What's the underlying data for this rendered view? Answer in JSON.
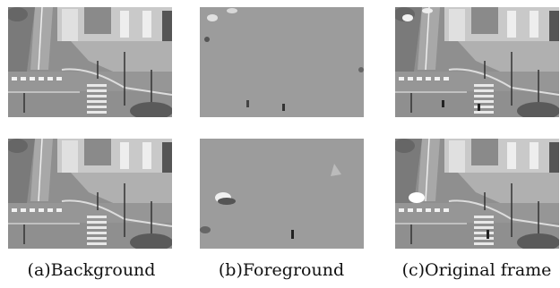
{
  "captions": {
    "a": "(a)Background",
    "b": "(b)Foreground",
    "c": "(c)Original frame"
  },
  "panels": {
    "row1": [
      {
        "content": "background",
        "scene": "street intersection with buildings, no moving objects"
      },
      {
        "content": "foreground",
        "scene": "gray field showing moving cars and pedestrians"
      },
      {
        "content": "original",
        "scene": "full street intersection frame"
      }
    ],
    "row2": [
      {
        "content": "background",
        "scene": "street intersection with buildings, no moving objects"
      },
      {
        "content": "foreground",
        "scene": "gray field showing a white car and pedestrian"
      },
      {
        "content": "original",
        "scene": "full street intersection frame"
      }
    ]
  },
  "colors": {
    "foreground_gray": "#9c9c9c",
    "road": "#8f8f8f",
    "building": "#c8c8c8",
    "marking": "#f2f2f2"
  }
}
